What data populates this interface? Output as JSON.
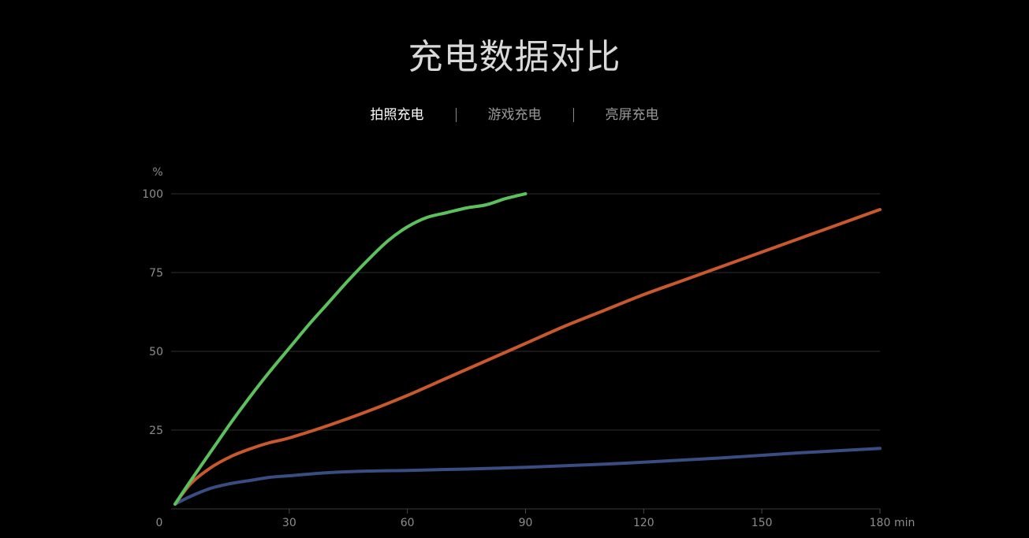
{
  "page": {
    "title": "充电数据对比",
    "tabs": [
      {
        "label": "拍照充电",
        "active": true
      },
      {
        "label": "游戏充电",
        "active": false
      },
      {
        "label": "亮屏充电",
        "active": false
      }
    ]
  },
  "chart_data": {
    "type": "line",
    "title": "充电数据对比",
    "ylabel": "%",
    "xlabel": "",
    "x_unit": "min",
    "xlim": [
      0,
      180
    ],
    "ylim": [
      0,
      100
    ],
    "x_ticks": [
      0,
      30,
      60,
      90,
      120,
      150,
      180
    ],
    "y_ticks": [
      25,
      50,
      75,
      100
    ],
    "grid": true,
    "series": [
      {
        "color": "#5cc05c",
        "points": [
          [
            1,
            1.5
          ],
          [
            5,
            9
          ],
          [
            10,
            18
          ],
          [
            15,
            27
          ],
          [
            20,
            35.5
          ],
          [
            25,
            43.5
          ],
          [
            30,
            51
          ],
          [
            35,
            58.5
          ],
          [
            40,
            65.5
          ],
          [
            45,
            72.5
          ],
          [
            50,
            79
          ],
          [
            55,
            85
          ],
          [
            60,
            89.5
          ],
          [
            65,
            92.5
          ],
          [
            70,
            94
          ],
          [
            75,
            95.5
          ],
          [
            80,
            96.5
          ],
          [
            85,
            98.5
          ],
          [
            90,
            100
          ]
        ]
      },
      {
        "color": "#c8582e",
        "points": [
          [
            1,
            1.5
          ],
          [
            5,
            8
          ],
          [
            10,
            13
          ],
          [
            15,
            16.5
          ],
          [
            20,
            19
          ],
          [
            25,
            21
          ],
          [
            30,
            22.5
          ],
          [
            40,
            26.5
          ],
          [
            50,
            31
          ],
          [
            60,
            36
          ],
          [
            70,
            41.5
          ],
          [
            80,
            47
          ],
          [
            90,
            52.5
          ],
          [
            100,
            58
          ],
          [
            110,
            63
          ],
          [
            120,
            68
          ],
          [
            130,
            72.5
          ],
          [
            140,
            77
          ],
          [
            150,
            81.5
          ],
          [
            160,
            86
          ],
          [
            170,
            90.5
          ],
          [
            180,
            95
          ]
        ]
      },
      {
        "color": "#3a4d82",
        "points": [
          [
            1,
            1.5
          ],
          [
            5,
            4
          ],
          [
            10,
            6.5
          ],
          [
            15,
            8
          ],
          [
            20,
            9
          ],
          [
            25,
            10
          ],
          [
            30,
            10.5
          ],
          [
            40,
            11.5
          ],
          [
            50,
            12
          ],
          [
            60,
            12.2
          ],
          [
            70,
            12.5
          ],
          [
            80,
            12.8
          ],
          [
            90,
            13.2
          ],
          [
            100,
            13.7
          ],
          [
            110,
            14.2
          ],
          [
            120,
            14.8
          ],
          [
            130,
            15.5
          ],
          [
            140,
            16.2
          ],
          [
            150,
            17
          ],
          [
            160,
            17.8
          ],
          [
            170,
            18.5
          ],
          [
            180,
            19.2
          ]
        ]
      }
    ]
  }
}
